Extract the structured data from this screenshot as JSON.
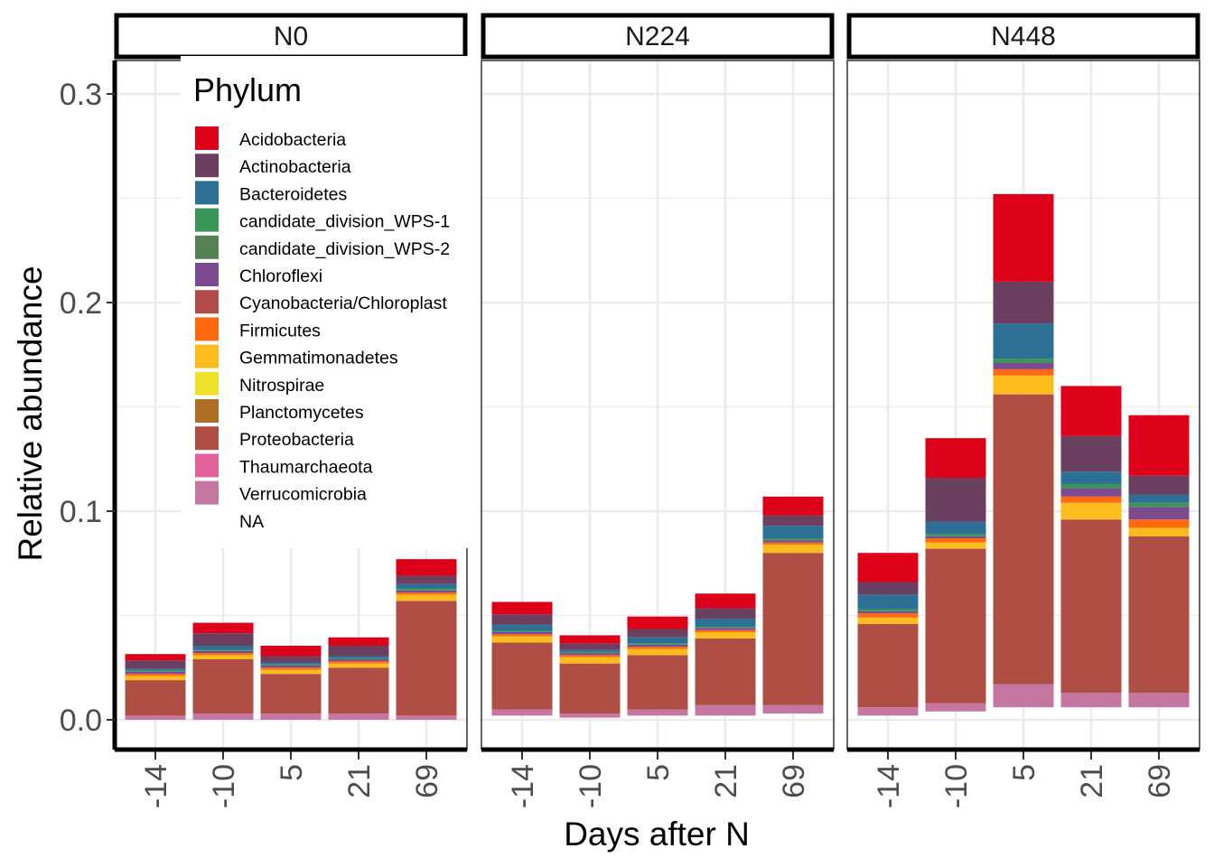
{
  "chart_data": {
    "type": "bar",
    "stacked": true,
    "faceted": true,
    "facets": [
      "N0",
      "N224",
      "N448"
    ],
    "categories": [
      "-14",
      "-10",
      "5",
      "21",
      "69"
    ],
    "xlabel": "Days after N",
    "ylabel": "Relative abundance",
    "ylim": [
      -0.015,
      0.31
    ],
    "yticks": [
      0.0,
      0.1,
      0.2,
      0.3
    ],
    "ytick_labels": [
      "0.0",
      "0.1",
      "0.2",
      "0.3"
    ],
    "grid": true,
    "legend": {
      "title": "Phylum",
      "placement": "top-left inside first panel",
      "entries": [
        {
          "name": "Acidobacteria",
          "color": "#DC0018"
        },
        {
          "name": "Actinobacteria",
          "color": "#6B3F60"
        },
        {
          "name": "Bacteroidetes",
          "color": "#2E7095"
        },
        {
          "name": "candidate_division_WPS-1",
          "color": "#3A9558"
        },
        {
          "name": "candidate_division_WPS-2",
          "color": "#548254"
        },
        {
          "name": "Chloroflexi",
          "color": "#7E4A8F"
        },
        {
          "name": "Cyanobacteria/Chloroplast",
          "color": "#B24C4A"
        },
        {
          "name": "Firmicutes",
          "color": "#FF6A10"
        },
        {
          "name": "Gemmatimonadetes",
          "color": "#FDBC1D"
        },
        {
          "name": "Nitrospirae",
          "color": "#EEE12A"
        },
        {
          "name": "Planctomycetes",
          "color": "#AE6E25"
        },
        {
          "name": "Proteobacteria",
          "color": "#AE4E45"
        },
        {
          "name": "Thaumarchaeota",
          "color": "#E4629C"
        },
        {
          "name": "Verrucomicrobia",
          "color": "#C577A2"
        },
        {
          "name": "NA",
          "color": ""
        }
      ]
    },
    "series": [
      {
        "name": "Verrucomicrobia",
        "color": "#C577A2",
        "values": [
          [
            0.002,
            0.003,
            0.003,
            0.003,
            0.002
          ],
          [
            0.003,
            0.002,
            0.003,
            0.005,
            0.004
          ],
          [
            0.004,
            0.004,
            0.011,
            0.007,
            0.007
          ]
        ],
        "baselines": [
          [
            0.0,
            0.0,
            0.0,
            0.0,
            0.0
          ],
          [
            0.002,
            0.001,
            0.002,
            0.002,
            0.003
          ],
          [
            0.002,
            0.004,
            0.006,
            0.006,
            0.006
          ]
        ]
      },
      {
        "name": "Proteobacteria",
        "color": "#AE4E45",
        "values": [
          [
            0.017,
            0.026,
            0.019,
            0.022,
            0.055
          ],
          [
            0.032,
            0.024,
            0.026,
            0.032,
            0.073
          ],
          [
            0.04,
            0.074,
            0.139,
            0.083,
            0.075
          ]
        ]
      },
      {
        "name": "Gemmatimonadetes",
        "color": "#FDBC1D",
        "values": [
          [
            0.002,
            0.002,
            0.002,
            0.002,
            0.003
          ],
          [
            0.003,
            0.003,
            0.003,
            0.003,
            0.004
          ],
          [
            0.003,
            0.003,
            0.009,
            0.008,
            0.004
          ]
        ]
      },
      {
        "name": "Firmicutes",
        "color": "#FF6A10",
        "values": [
          [
            0.001,
            0.001,
            0.001,
            0.001,
            0.001
          ],
          [
            0.001,
            0.001,
            0.001,
            0.001,
            0.001
          ],
          [
            0.002,
            0.002,
            0.003,
            0.003,
            0.004
          ]
        ]
      },
      {
        "name": "Chloroflexi",
        "color": "#7E4A8F",
        "values": [
          [
            0.001,
            0.001,
            0.001,
            0.001,
            0.001
          ],
          [
            0.001,
            0.001,
            0.001,
            0.001,
            0.001
          ],
          [
            0.001,
            0.001,
            0.003,
            0.004,
            0.006
          ]
        ]
      },
      {
        "name": "candidate_division_WPS-1",
        "color": "#3A9558",
        "values": [
          [
            0.0005,
            0.0005,
            0.0005,
            0.0005,
            0.001
          ],
          [
            0.0005,
            0.0005,
            0.0005,
            0.0005,
            0.001
          ],
          [
            0.001,
            0.001,
            0.002,
            0.002,
            0.002
          ]
        ]
      },
      {
        "name": "Bacteroidetes",
        "color": "#2E7095",
        "values": [
          [
            0.001,
            0.002,
            0.001,
            0.001,
            0.002
          ],
          [
            0.003,
            0.001,
            0.003,
            0.004,
            0.006
          ],
          [
            0.007,
            0.006,
            0.017,
            0.006,
            0.004
          ]
        ]
      },
      {
        "name": "Actinobacteria",
        "color": "#6B3F60",
        "values": [
          [
            0.004,
            0.006,
            0.003,
            0.005,
            0.004
          ],
          [
            0.005,
            0.003,
            0.004,
            0.005,
            0.005
          ],
          [
            0.006,
            0.021,
            0.02,
            0.017,
            0.009
          ]
        ]
      },
      {
        "name": "Acidobacteria",
        "color": "#DC0018",
        "values": [
          [
            0.003,
            0.005,
            0.005,
            0.004,
            0.008
          ],
          [
            0.006,
            0.004,
            0.006,
            0.007,
            0.009
          ],
          [
            0.014,
            0.019,
            0.042,
            0.024,
            0.029
          ]
        ]
      }
    ]
  }
}
